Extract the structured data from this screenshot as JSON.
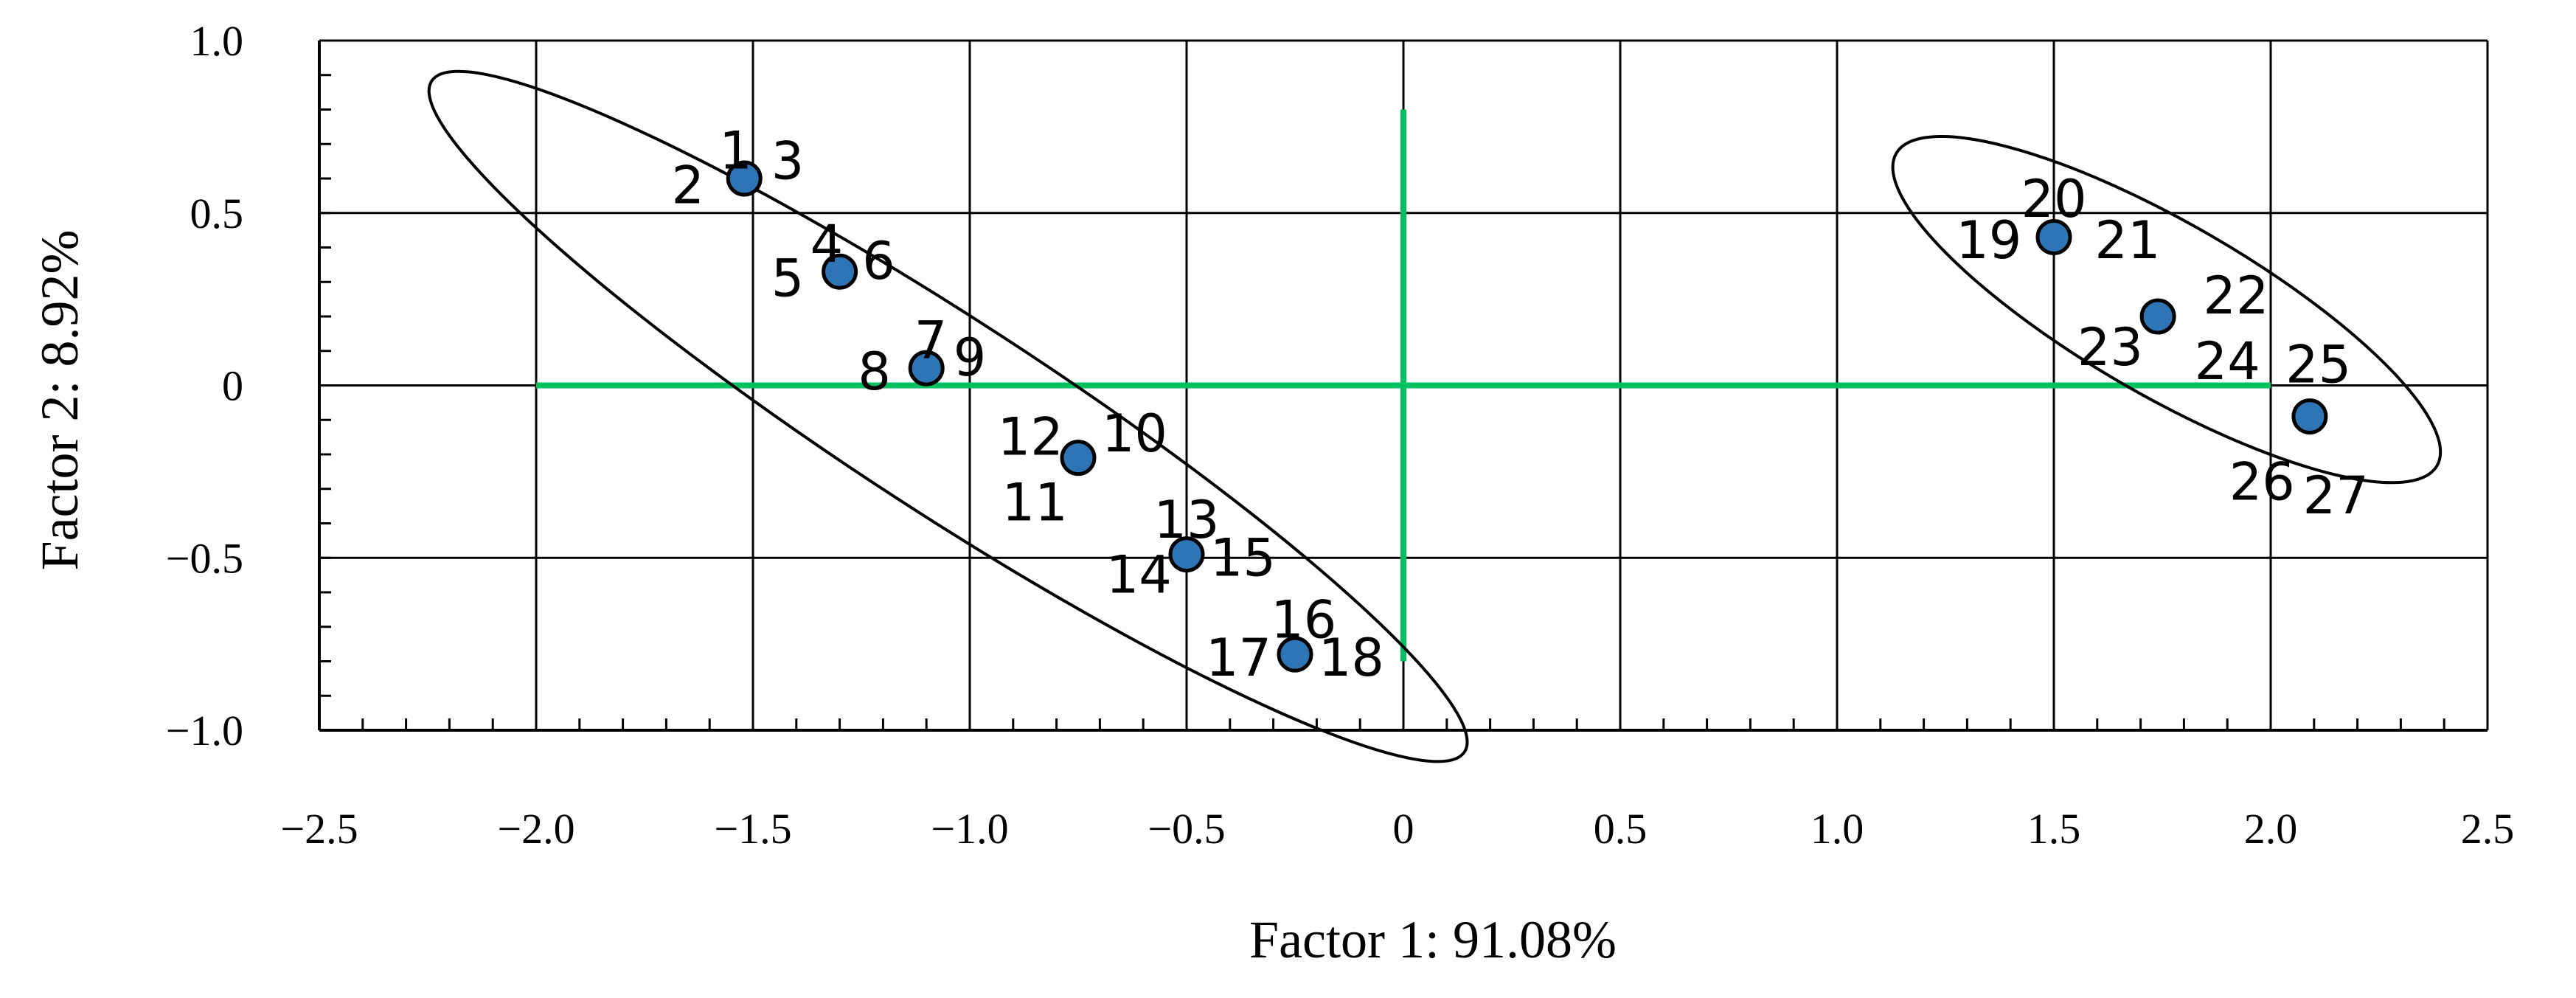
{
  "chart_data": {
    "type": "scatter",
    "title": "",
    "xlabel": "Factor 1: 91.08%",
    "ylabel": "Factor 2: 8.92%",
    "xlim": [
      -2.5,
      2.5
    ],
    "ylim": [
      -1.0,
      1.0
    ],
    "x_ticks": [
      -2.5,
      -2.0,
      -1.5,
      -1.0,
      -0.5,
      0,
      0.5,
      1.0,
      1.5,
      2.0,
      2.5
    ],
    "x_tick_labels": [
      "−2.5",
      "−2.0",
      "−1.5",
      "−1.0",
      "−0.5",
      "0",
      "0.5",
      "1.0",
      "1.5",
      "2.0",
      "2.5"
    ],
    "y_ticks": [
      1.0,
      0.5,
      0,
      -0.5,
      -1.0
    ],
    "y_tick_labels": [
      "1.0",
      "0.5",
      "0",
      "−0.5",
      "−1.0"
    ],
    "grid": true,
    "legend": "none",
    "point_color": "#2e75b6",
    "reference_line_color": "#00c060",
    "points": [
      {
        "x": -1.52,
        "y": 0.6,
        "labels": [
          {
            "text": "1",
            "dx": -0.02,
            "dy": 0.08
          },
          {
            "text": "2",
            "dx": -0.13,
            "dy": -0.02
          },
          {
            "text": "3",
            "dx": 0.1,
            "dy": 0.05
          }
        ]
      },
      {
        "x": -1.3,
        "y": 0.33,
        "labels": [
          {
            "text": "4",
            "dx": -0.03,
            "dy": 0.08
          },
          {
            "text": "5",
            "dx": -0.12,
            "dy": -0.02
          },
          {
            "text": "6",
            "dx": 0.09,
            "dy": 0.03
          }
        ]
      },
      {
        "x": -1.1,
        "y": 0.05,
        "labels": [
          {
            "text": "7",
            "dx": 0.01,
            "dy": 0.08
          },
          {
            "text": "8",
            "dx": -0.12,
            "dy": -0.01
          },
          {
            "text": "9",
            "dx": 0.1,
            "dy": 0.03
          }
        ]
      },
      {
        "x": -0.75,
        "y": -0.21,
        "labels": [
          {
            "text": "10",
            "dx": 0.13,
            "dy": 0.07
          },
          {
            "text": "11",
            "dx": -0.1,
            "dy": -0.13
          },
          {
            "text": "12",
            "dx": -0.11,
            "dy": 0.06
          }
        ]
      },
      {
        "x": -0.5,
        "y": -0.49,
        "labels": [
          {
            "text": "13",
            "dx": 0.0,
            "dy": 0.1
          },
          {
            "text": "14",
            "dx": -0.11,
            "dy": -0.06
          },
          {
            "text": "15",
            "dx": 0.13,
            "dy": -0.01
          }
        ]
      },
      {
        "x": -0.25,
        "y": -0.78,
        "labels": [
          {
            "text": "16",
            "dx": 0.02,
            "dy": 0.1
          },
          {
            "text": "17",
            "dx": -0.13,
            "dy": -0.01
          },
          {
            "text": "18",
            "dx": 0.13,
            "dy": -0.01
          }
        ]
      },
      {
        "x": 1.5,
        "y": 0.43,
        "labels": [
          {
            "text": "19",
            "dx": -0.15,
            "dy": -0.01
          },
          {
            "text": "20",
            "dx": 0.0,
            "dy": 0.11
          },
          {
            "text": "21",
            "dx": 0.17,
            "dy": -0.01
          }
        ]
      },
      {
        "x": 1.74,
        "y": 0.2,
        "labels": [
          {
            "text": "22",
            "dx": 0.18,
            "dy": 0.06
          },
          {
            "text": "23",
            "dx": -0.11,
            "dy": -0.09
          },
          {
            "text": "24",
            "dx": 0.16,
            "dy": -0.13
          }
        ]
      },
      {
        "x": 2.09,
        "y": -0.09,
        "labels": [
          {
            "text": "25",
            "dx": 0.02,
            "dy": 0.15
          },
          {
            "text": "26",
            "dx": -0.11,
            "dy": -0.19
          },
          {
            "text": "27",
            "dx": 0.06,
            "dy": -0.23
          }
        ]
      }
    ],
    "reference_lines": {
      "horizontal": {
        "y": 0,
        "x_from": -2.0,
        "x_to": 2.0
      },
      "vertical": {
        "x": 0,
        "y_from": -0.8,
        "y_to": 0.8
      }
    },
    "cluster_ellipses": [
      {
        "cx": -1.05,
        "cy": -0.09,
        "rx": 1.42,
        "ry": 0.28,
        "angle_deg": 33
      },
      {
        "cx": 1.76,
        "cy": 0.22,
        "rx": 0.72,
        "ry": 0.25,
        "angle_deg": 30
      }
    ]
  }
}
